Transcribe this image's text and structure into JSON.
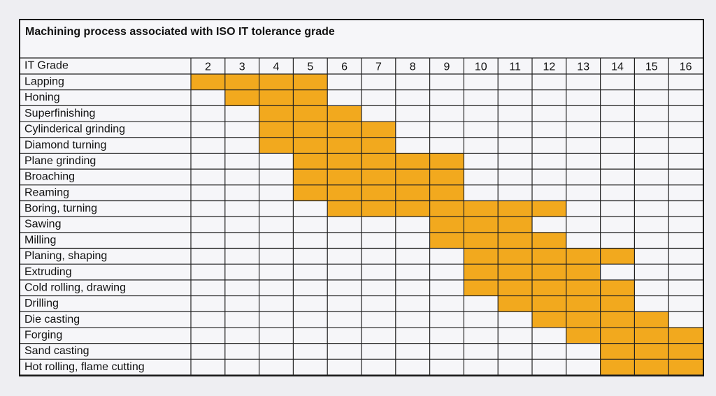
{
  "title": "Machining process associated with ISO IT tolerance grade",
  "header": {
    "label": "IT Grade",
    "grades": [
      2,
      3,
      4,
      5,
      6,
      7,
      8,
      9,
      10,
      11,
      12,
      13,
      14,
      15,
      16
    ]
  },
  "fill_color": "#f2a91e",
  "rows": [
    {
      "label": "Lapping",
      "from": 2,
      "to": 5
    },
    {
      "label": "Honing",
      "from": 3,
      "to": 5
    },
    {
      "label": "Superfinishing",
      "from": 4,
      "to": 6
    },
    {
      "label": "Cylinderical grinding",
      "from": 4,
      "to": 7
    },
    {
      "label": "Diamond turning",
      "from": 4,
      "to": 7
    },
    {
      "label": "Plane grinding",
      "from": 5,
      "to": 9
    },
    {
      "label": "Broaching",
      "from": 5,
      "to": 9
    },
    {
      "label": "Reaming",
      "from": 5,
      "to": 9
    },
    {
      "label": "Boring, turning",
      "from": 6,
      "to": 12
    },
    {
      "label": "Sawing",
      "from": 9,
      "to": 11
    },
    {
      "label": "Milling",
      "from": 9,
      "to": 12
    },
    {
      "label": "Planing, shaping",
      "from": 10,
      "to": 14
    },
    {
      "label": "Extruding",
      "from": 10,
      "to": 13
    },
    {
      "label": "Cold rolling, drawing",
      "from": 10,
      "to": 14
    },
    {
      "label": "Drilling",
      "from": 11,
      "to": 14
    },
    {
      "label": "Die casting",
      "from": 12,
      "to": 15
    },
    {
      "label": "Forging",
      "from": 13,
      "to": 16
    },
    {
      "label": "Sand casting",
      "from": 14,
      "to": 16
    },
    {
      "label": "Hot rolling, flame cutting",
      "from": 14,
      "to": 16
    }
  ]
}
